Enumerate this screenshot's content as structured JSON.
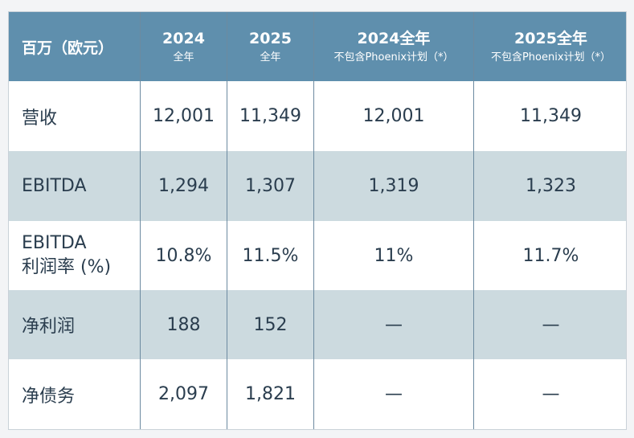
{
  "header": {
    "label": "百万（欧元）",
    "columns": [
      {
        "main": "2024",
        "sub": "全年"
      },
      {
        "main": "2025",
        "sub": "全年"
      },
      {
        "main": "2024全年",
        "sub": "不包含Phoenix计划（*）"
      },
      {
        "main": "2025全年",
        "sub": "不包含Phoenix计划（*）"
      }
    ]
  },
  "rows": [
    {
      "label": "营收",
      "values": [
        "12,001",
        "11,349",
        "12,001",
        "11,349"
      ]
    },
    {
      "label": "EBITDA",
      "values": [
        "1,294",
        "1,307",
        "1,319",
        "1,323"
      ]
    },
    {
      "label_line1": "EBITDA",
      "label_line2": "利润率 (%)",
      "values": [
        "10.8%",
        "11.5%",
        "11%",
        "11.7%"
      ]
    },
    {
      "label": "净利润",
      "values": [
        "188",
        "152",
        "—",
        "—"
      ]
    },
    {
      "label": "净债务",
      "values": [
        "2,097",
        "1,821",
        "—",
        "—"
      ]
    }
  ],
  "colors": {
    "header_bg": "#5f8fad",
    "stripe_bg": "#ccdadf",
    "text": "#2a3d4e",
    "divider": "#6c8aa0"
  }
}
